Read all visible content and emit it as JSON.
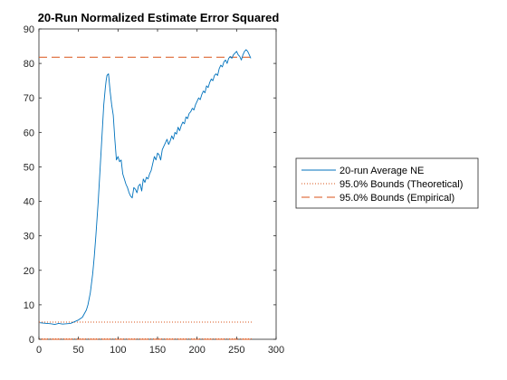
{
  "chart_data": {
    "type": "line",
    "title": "20-Run Normalized Estimate Error Squared",
    "xlabel": "",
    "ylabel": "",
    "xlim": [
      0,
      300
    ],
    "ylim": [
      0,
      90
    ],
    "xticks": [
      0,
      50,
      100,
      150,
      200,
      250,
      300
    ],
    "yticks": [
      0,
      10,
      20,
      30,
      40,
      50,
      60,
      70,
      80,
      90
    ],
    "grid": false,
    "legend_position": "outside-right",
    "colors": {
      "series": "#0072BD",
      "bounds": "#D95319"
    },
    "series": [
      {
        "name": "20-run Average NE",
        "style": "solid",
        "x": [
          1,
          5,
          10,
          15,
          20,
          25,
          30,
          35,
          40,
          45,
          50,
          55,
          60,
          62,
          65,
          68,
          70,
          72,
          75,
          78,
          80,
          82,
          84,
          85,
          86,
          88,
          90,
          92,
          94,
          96,
          98,
          100,
          102,
          104,
          106,
          108,
          110,
          112,
          114,
          116,
          118,
          120,
          122,
          124,
          126,
          128,
          130,
          132,
          134,
          136,
          138,
          140,
          142,
          144,
          146,
          148,
          150,
          152,
          154,
          156,
          158,
          160,
          162,
          164,
          166,
          168,
          170,
          172,
          174,
          176,
          178,
          180,
          182,
          184,
          186,
          188,
          190,
          192,
          194,
          196,
          198,
          200,
          202,
          204,
          206,
          208,
          210,
          212,
          214,
          216,
          218,
          220,
          222,
          224,
          226,
          228,
          230,
          232,
          234,
          236,
          238,
          240,
          242,
          244,
          246,
          248,
          250,
          252,
          254,
          256,
          258,
          260,
          262,
          264,
          266,
          268
        ],
        "values": [
          4.8,
          4.7,
          4.6,
          4.5,
          4.3,
          4.6,
          4.4,
          4.5,
          4.6,
          5.1,
          5.6,
          6.4,
          8.5,
          10.0,
          13.5,
          19.0,
          24.0,
          30.0,
          40.0,
          52.0,
          60.0,
          68.0,
          73.0,
          75.0,
          76.5,
          77.0,
          72.0,
          68.0,
          65.0,
          58.0,
          52.0,
          53.0,
          51.5,
          52.0,
          48.0,
          46.5,
          45.0,
          44.0,
          42.5,
          41.5,
          41.0,
          44.0,
          43.5,
          42.5,
          44.5,
          45.0,
          43.0,
          46.5,
          45.5,
          47.0,
          46.5,
          48.0,
          49.0,
          51.0,
          53.0,
          52.0,
          54.0,
          53.5,
          52.0,
          55.0,
          56.0,
          57.0,
          58.0,
          56.5,
          57.5,
          59.0,
          58.0,
          60.0,
          59.5,
          61.5,
          60.5,
          62.0,
          63.0,
          62.5,
          64.5,
          64.0,
          65.5,
          66.0,
          67.0,
          66.5,
          68.0,
          69.0,
          70.0,
          69.5,
          71.0,
          72.0,
          71.5,
          73.5,
          73.0,
          74.5,
          75.5,
          75.0,
          76.5,
          77.0,
          76.5,
          78.5,
          79.5,
          79.0,
          80.5,
          81.0,
          80.0,
          81.5,
          82.0,
          81.5,
          82.5,
          83.0,
          83.5,
          82.5,
          82.0,
          81.0,
          82.5,
          83.5,
          84.0,
          83.5,
          82.5,
          81.5
        ]
      },
      {
        "name": "95.0% Bounds (Theoretical)",
        "style": "dotted",
        "x": [
          0,
          270
        ],
        "values": [
          5.0,
          5.0
        ],
        "lower_values": [
          0.1,
          0.1
        ]
      },
      {
        "name": "95.0% Bounds (Empirical)",
        "style": "dashed",
        "x": [
          0,
          270
        ],
        "values": [
          81.8,
          81.8
        ],
        "lower_values": [
          0.0,
          0.0
        ]
      }
    ]
  }
}
